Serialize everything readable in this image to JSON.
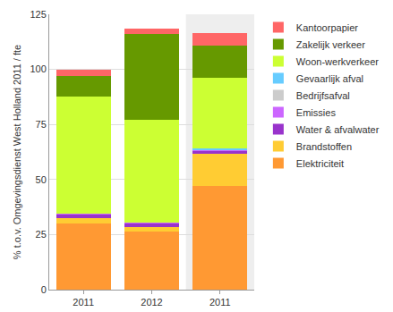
{
  "chart_data": {
    "type": "bar",
    "stacked": true,
    "y_label": "% t.o.v. Omgevingsdienst West Holland 2011 / fte",
    "categories": [
      "2011",
      "2012",
      "2011"
    ],
    "ylim": [
      0,
      125
    ],
    "yticks": [
      0,
      25,
      50,
      75,
      100,
      125
    ],
    "grid": true,
    "legend": "right",
    "series": [
      {
        "name": "Elektriciteit",
        "color": "#ff9933",
        "values": [
          30,
          26.5,
          47
        ]
      },
      {
        "name": "Brandstoffen",
        "color": "#ffcc33",
        "values": [
          2.5,
          2,
          14.5
        ]
      },
      {
        "name": "Water & afvalwater",
        "color": "#9933cc",
        "values": [
          1.5,
          1.5,
          1.5
        ]
      },
      {
        "name": "Emissies",
        "color": "#cc66ff",
        "values": [
          0.3,
          0.3,
          0.3
        ]
      },
      {
        "name": "Bedrijfsafval",
        "color": "#cccccc",
        "values": [
          0,
          0,
          0
        ]
      },
      {
        "name": "Gevaarlijk afval",
        "color": "#66ccff",
        "values": [
          0,
          0,
          1
        ]
      },
      {
        "name": "Woon-werkverkeer",
        "color": "#ccff33",
        "values": [
          53.2,
          46.7,
          31.7
        ]
      },
      {
        "name": "Zakelijk verkeer",
        "color": "#669900",
        "values": [
          9.5,
          39,
          15
        ]
      },
      {
        "name": "Kantoorpapier",
        "color": "#ff6666",
        "values": [
          3,
          2.5,
          5.5
        ]
      }
    ]
  }
}
